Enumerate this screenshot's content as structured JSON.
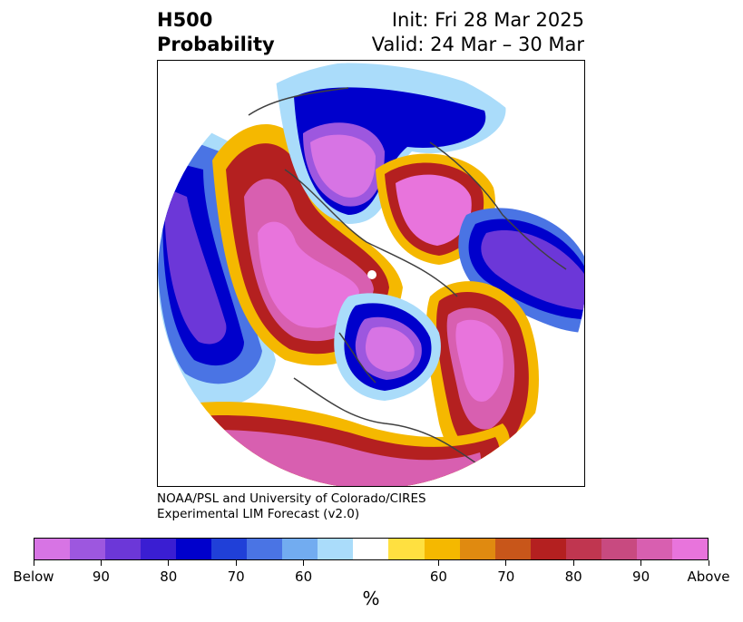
{
  "header": {
    "title_line1": "H500",
    "title_line2": "Probability",
    "init": "Init: Fri 28 Mar 2025",
    "valid": "Valid: 24 Mar – 30 Mar"
  },
  "credit": {
    "line1": "NOAA/PSL and University of Colorado/CIRES",
    "line2": "Experimental LIM Forecast (v2.0)"
  },
  "colorbar": {
    "unit": "%",
    "bins": [
      "#d774e4",
      "#9d57df",
      "#6c37d8",
      "#3a1ed2",
      "#0000cc",
      "#2040d8",
      "#4a74e4",
      "#72acf0",
      "#aadcfa",
      "#ffffff",
      "#ffe040",
      "#f5b800",
      "#e08a10",
      "#c8561a",
      "#b42020",
      "#c03650",
      "#c84a80",
      "#d85fb0",
      "#e874dc"
    ],
    "tick_labels": [
      "Below",
      "90",
      "80",
      "70",
      "60",
      "60",
      "70",
      "80",
      "90",
      "Above"
    ]
  }
}
